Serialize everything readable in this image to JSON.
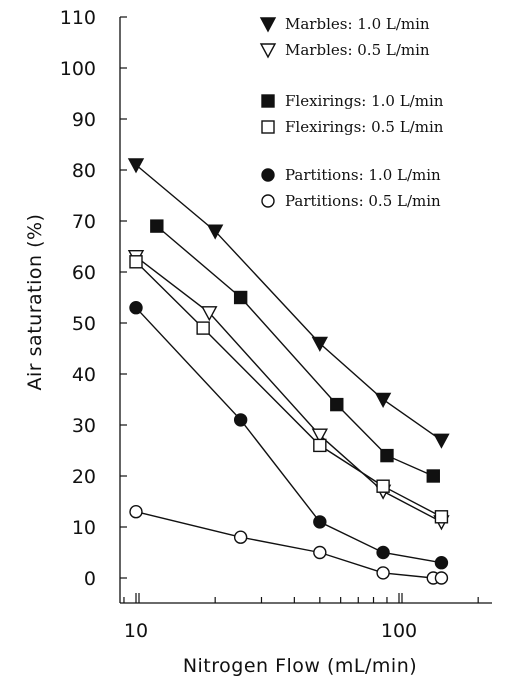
{
  "chart_data": {
    "type": "line",
    "xlabel": "Nitrogen Flow (mL/min)",
    "ylabel": "Air saturation (%)",
    "xscale": "log",
    "xlim": [
      7.8,
      200
    ],
    "ylim": [
      0,
      110
    ],
    "x_tick_values": [
      10,
      100
    ],
    "x_tick_labels": [
      "10",
      "100"
    ],
    "y_ticks": [
      0,
      10,
      20,
      30,
      40,
      50,
      60,
      70,
      80,
      90,
      100,
      110
    ],
    "grid": false,
    "legend_position": "top-right",
    "series": [
      {
        "name": "Marbles: 1.0 L/min",
        "marker": "triangle-down",
        "filled": true,
        "x": [
          10,
          20,
          50,
          87,
          145
        ],
        "y": [
          81,
          68,
          46,
          35,
          27
        ]
      },
      {
        "name": "Marbles: 0.5 L/min",
        "marker": "triangle-down",
        "filled": false,
        "x": [
          10,
          19,
          50,
          87,
          145
        ],
        "y": [
          63,
          52,
          28,
          17,
          11
        ]
      },
      {
        "name": "Flexirings: 1.0 L/min",
        "marker": "square",
        "filled": true,
        "x": [
          12,
          25,
          58,
          90,
          135
        ],
        "y": [
          69,
          55,
          34,
          24,
          20
        ]
      },
      {
        "name": "Flexirings: 0.5 L/min",
        "marker": "square",
        "filled": false,
        "x": [
          10,
          18,
          50,
          87,
          145
        ],
        "y": [
          62,
          49,
          26,
          18,
          12
        ]
      },
      {
        "name": "Partitions: 1.0 L/min",
        "marker": "circle",
        "filled": true,
        "x": [
          10,
          25,
          50,
          87,
          145
        ],
        "y": [
          53,
          31,
          11,
          5,
          3
        ]
      },
      {
        "name": "Partitions: 0.5 L/min",
        "marker": "circle",
        "filled": false,
        "x": [
          10,
          25,
          50,
          87,
          135,
          145
        ],
        "y": [
          13,
          8,
          5,
          1,
          0,
          0
        ]
      }
    ]
  }
}
